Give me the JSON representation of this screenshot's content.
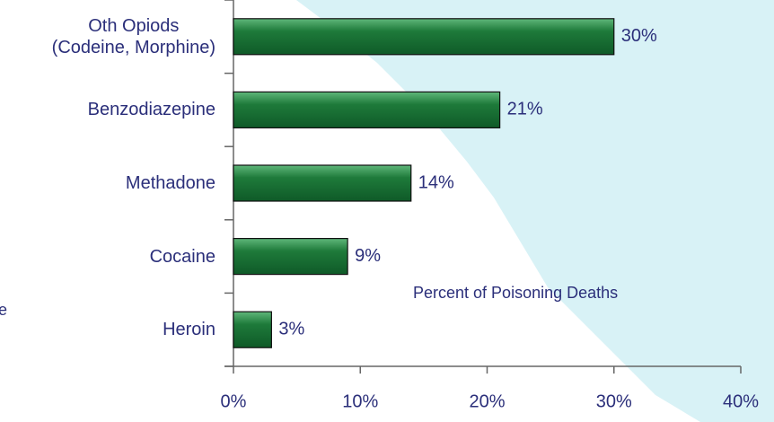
{
  "chart_data": {
    "type": "bar",
    "orientation": "horizontal",
    "categories": [
      "Oth Opiods\n(Codeine, Morphine)",
      "Benzodiazepine",
      "Methadone",
      "Cocaine",
      "Heroin"
    ],
    "values": [
      30,
      21,
      14,
      9,
      3
    ],
    "value_labels": [
      "30%",
      "21%",
      "14%",
      "9%",
      "3%"
    ],
    "color": "#1e7a3a",
    "xlim": [
      0,
      40
    ],
    "xticks": [
      {
        "value": 0,
        "label": "0%"
      },
      {
        "value": 10,
        "label": "10%"
      },
      {
        "value": 20,
        "label": "20%"
      },
      {
        "value": 30,
        "label": "30%"
      },
      {
        "value": 40,
        "label": "40%"
      }
    ],
    "annotation": "Percent of Poisoning Deaths",
    "side_text": "e"
  }
}
